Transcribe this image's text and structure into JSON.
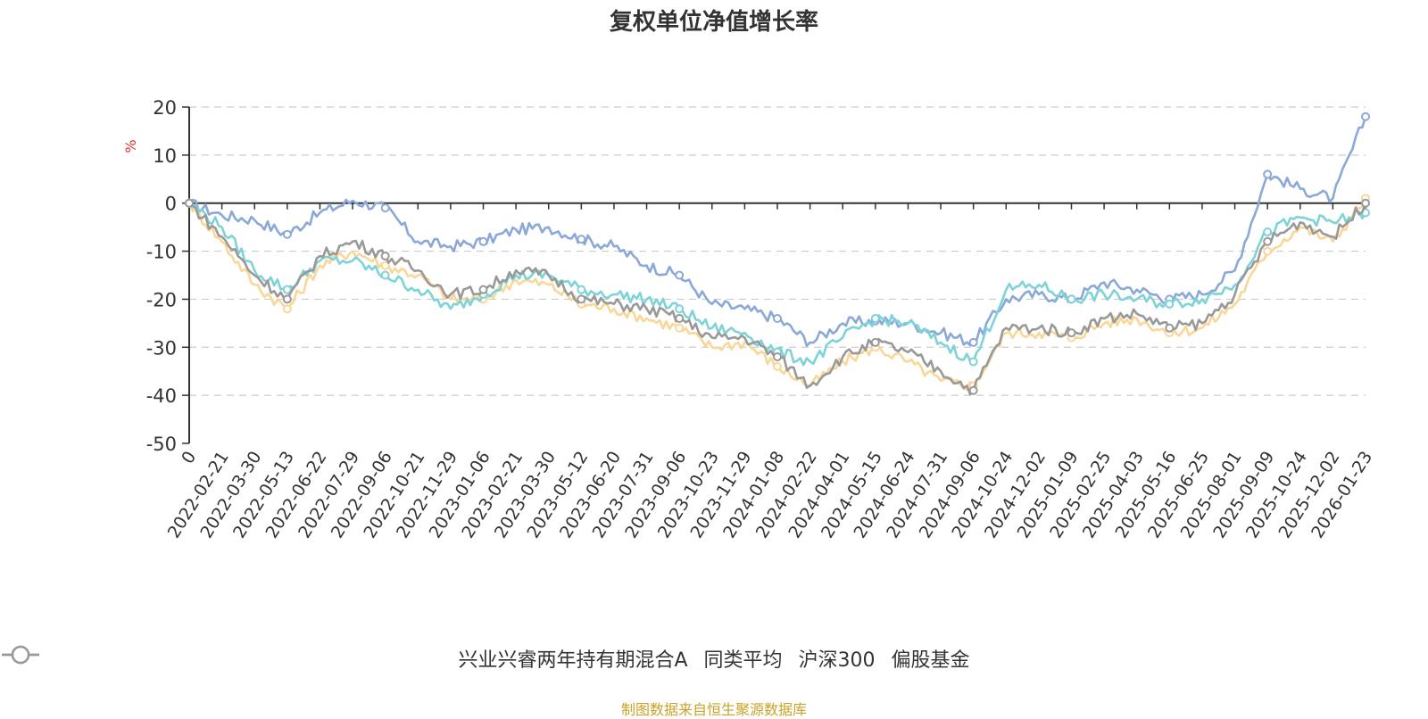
{
  "chart_data": {
    "type": "line",
    "title": "复权单位净值增长率",
    "ylabel": "%",
    "ylim": [
      -50,
      20
    ],
    "yticks": [
      20,
      10,
      0,
      -10,
      -20,
      -30,
      -40,
      -50
    ],
    "grid": true,
    "legend_position": "bottom",
    "categories": [
      "0",
      "2022-02-21",
      "2022-03-30",
      "2022-05-13",
      "2022-06-22",
      "2022-07-29",
      "2022-09-06",
      "2022-10-21",
      "2022-11-29",
      "2023-01-06",
      "2023-02-21",
      "2023-03-30",
      "2023-05-12",
      "2023-06-20",
      "2023-07-31",
      "2023-09-06",
      "2023-10-23",
      "2023-11-29",
      "2024-01-08",
      "2024-02-22",
      "2024-04-01",
      "2024-05-15",
      "2024-06-24",
      "2024-07-31",
      "2024-09-06",
      "2024-10-24",
      "2024-12-02",
      "2025-01-09",
      "2025-02-25",
      "2025-04-03",
      "2025-05-16",
      "2025-06-25",
      "2025-08-01",
      "2025-09-09",
      "2025-10-24",
      "2025-12-02",
      "2026-01-23"
    ],
    "series": [
      {
        "name": "兴业兴睿两年持有期混合A",
        "color": "#8aa8d8",
        "values": [
          0,
          -2.5,
          -3.5,
          -6.5,
          -2,
          0.5,
          -1,
          -8,
          -9,
          -8,
          -5.5,
          -5,
          -7.5,
          -9,
          -13,
          -15,
          -21,
          -22,
          -24,
          -29,
          -25,
          -24.5,
          -25,
          -27,
          -29,
          -20,
          -19,
          -20,
          -16.5,
          -18,
          -20,
          -19,
          -14,
          6,
          3,
          1,
          18
        ]
      },
      {
        "name": "同类平均",
        "color": "#fad797",
        "values": [
          0,
          -8,
          -17,
          -22,
          -13,
          -10,
          -13,
          -15,
          -20,
          -20,
          -16,
          -17,
          -21,
          -22,
          -24,
          -26,
          -30,
          -29,
          -34,
          -38,
          -33,
          -30,
          -33,
          -37,
          -38,
          -27,
          -27,
          -28,
          -25,
          -24,
          -27,
          -26,
          -21,
          -10,
          -5,
          -8,
          1
        ]
      },
      {
        "name": "沪深300",
        "color": "#7ed3d8",
        "values": [
          0,
          -5,
          -14,
          -18,
          -12,
          -12,
          -15,
          -18,
          -22,
          -19,
          -15,
          -15,
          -18,
          -19,
          -20,
          -22,
          -26,
          -27,
          -31,
          -33,
          -28,
          -24,
          -25,
          -29,
          -33,
          -18,
          -17,
          -20,
          -19,
          -20,
          -21,
          -20,
          -17,
          -6,
          -3,
          -4,
          -2
        ]
      },
      {
        "name": "偏股基金",
        "color": "#999999",
        "values": [
          0,
          -7,
          -15,
          -20,
          -11,
          -8,
          -11,
          -14,
          -19,
          -18,
          -14,
          -15,
          -20,
          -21,
          -22,
          -24,
          -28,
          -28,
          -32,
          -38,
          -32,
          -29,
          -31,
          -35,
          -39,
          -26,
          -26,
          -27,
          -24,
          -23,
          -26,
          -25,
          -19,
          -8,
          -4,
          -7,
          0
        ]
      }
    ]
  },
  "source_text": "制图数据来自恒生聚源数据库",
  "source_color": "#c9a227"
}
